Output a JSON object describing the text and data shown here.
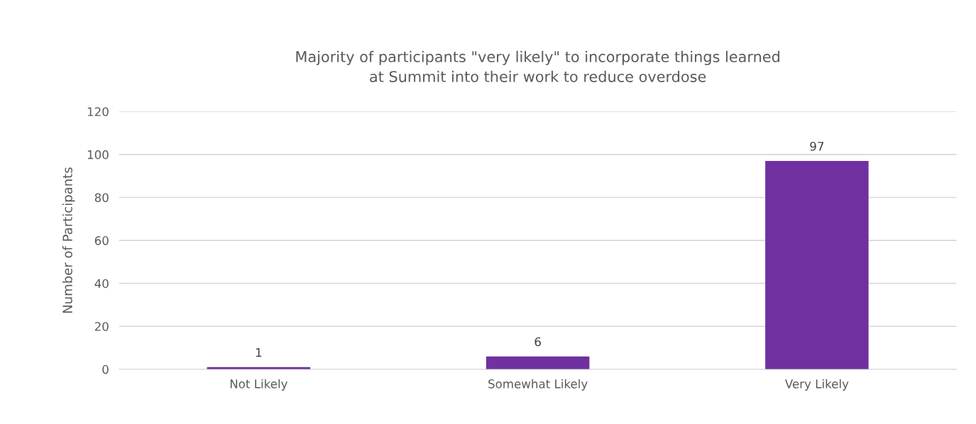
{
  "chart_data": {
    "type": "bar",
    "title": "Majority of participants \"very likely\" to incorporate things learned\nat Summit into their work to reduce overdose",
    "ylabel": "Number of Participants",
    "categories": [
      "Not Likely",
      "Somewhat Likely",
      "Very Likely"
    ],
    "values": [
      1,
      6,
      97
    ],
    "color": "#7030a0",
    "ylim": [
      0,
      120
    ],
    "yticks": [
      0,
      20,
      40,
      60,
      80,
      100,
      120
    ],
    "grid": "y",
    "data_labels": true
  }
}
